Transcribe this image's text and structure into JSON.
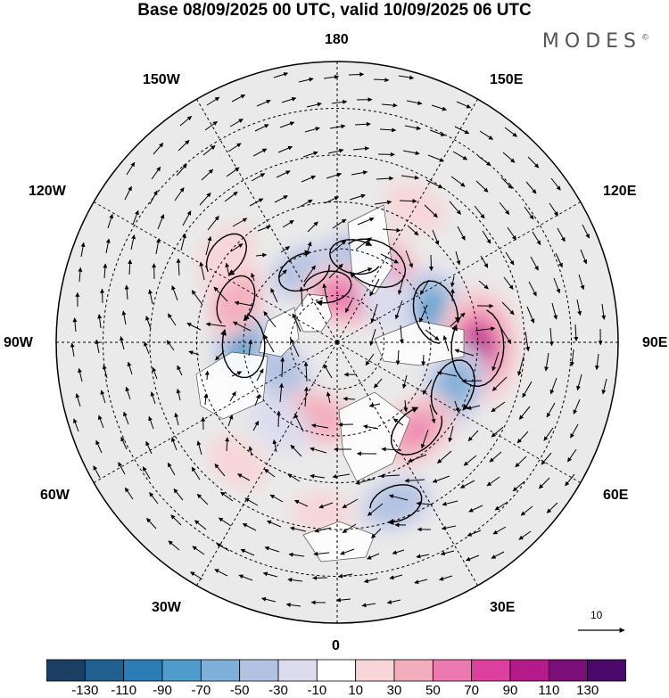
{
  "title": "Base 08/09/2025 00 UTC, valid 10/09/2025 06 UTC",
  "brand": "MODES",
  "brand_mark": "©",
  "longitude_labels": {
    "lon_180": "180",
    "lon_150e": "150E",
    "lon_120e": "120E",
    "lon_90e": "90E",
    "lon_60e": "60E",
    "lon_30e": "30E",
    "lon_0": "0",
    "lon_30w": "30W",
    "lon_60w": "60W",
    "lon_90w": "90W",
    "lon_120w": "120W",
    "lon_150w": "150W"
  },
  "vector_scale_label": "10",
  "colorbar": {
    "ticks": [
      "-130",
      "-110",
      "-90",
      "-70",
      "-50",
      "-30",
      "-10",
      "10",
      "30",
      "50",
      "70",
      "90",
      "110",
      "130"
    ],
    "colors": [
      "#1a3f63",
      "#215f8f",
      "#2c7db5",
      "#4e9ccb",
      "#7fb0d9",
      "#b3c2e2",
      "#dcdcee",
      "#ffffff",
      "#f8d5d8",
      "#f3aebd",
      "#ec7ab0",
      "#dc3f9c",
      "#b41a8a",
      "#7b0f78",
      "#4b0a6b"
    ]
  },
  "anomaly_centres": [
    {
      "lat": 62,
      "lon": 155,
      "value": 75
    },
    {
      "lat": 57,
      "lon": 107,
      "value": -70
    },
    {
      "lat": 45,
      "lon": 88,
      "value": 110
    },
    {
      "lat": 50,
      "lon": 68,
      "value": -60
    },
    {
      "lat": 52,
      "lon": 42,
      "value": 55
    },
    {
      "lat": 35,
      "lon": 20,
      "value": -40
    },
    {
      "lat": 60,
      "lon": -88,
      "value": -70
    },
    {
      "lat": 55,
      "lon": -112,
      "value": 40
    },
    {
      "lat": 45,
      "lon": -128,
      "value": 30
    },
    {
      "lat": 72,
      "lon": -170,
      "value": 25
    },
    {
      "lat": 65,
      "lon": -155,
      "value": -40
    },
    {
      "lat": 62,
      "lon": 168,
      "value": -35
    },
    {
      "lat": 75,
      "lon": 170,
      "value": 60
    },
    {
      "lat": 70,
      "lon": -60,
      "value": -40
    },
    {
      "lat": 65,
      "lon": -15,
      "value": 45
    },
    {
      "lat": 58,
      "lon": -35,
      "value": -25
    },
    {
      "lat": 40,
      "lon": -40,
      "value": 20
    },
    {
      "lat": 35,
      "lon": -5,
      "value": 15
    },
    {
      "lat": 70,
      "lon": 130,
      "value": -20
    },
    {
      "lat": 40,
      "lon": 150,
      "value": 20
    }
  ]
}
